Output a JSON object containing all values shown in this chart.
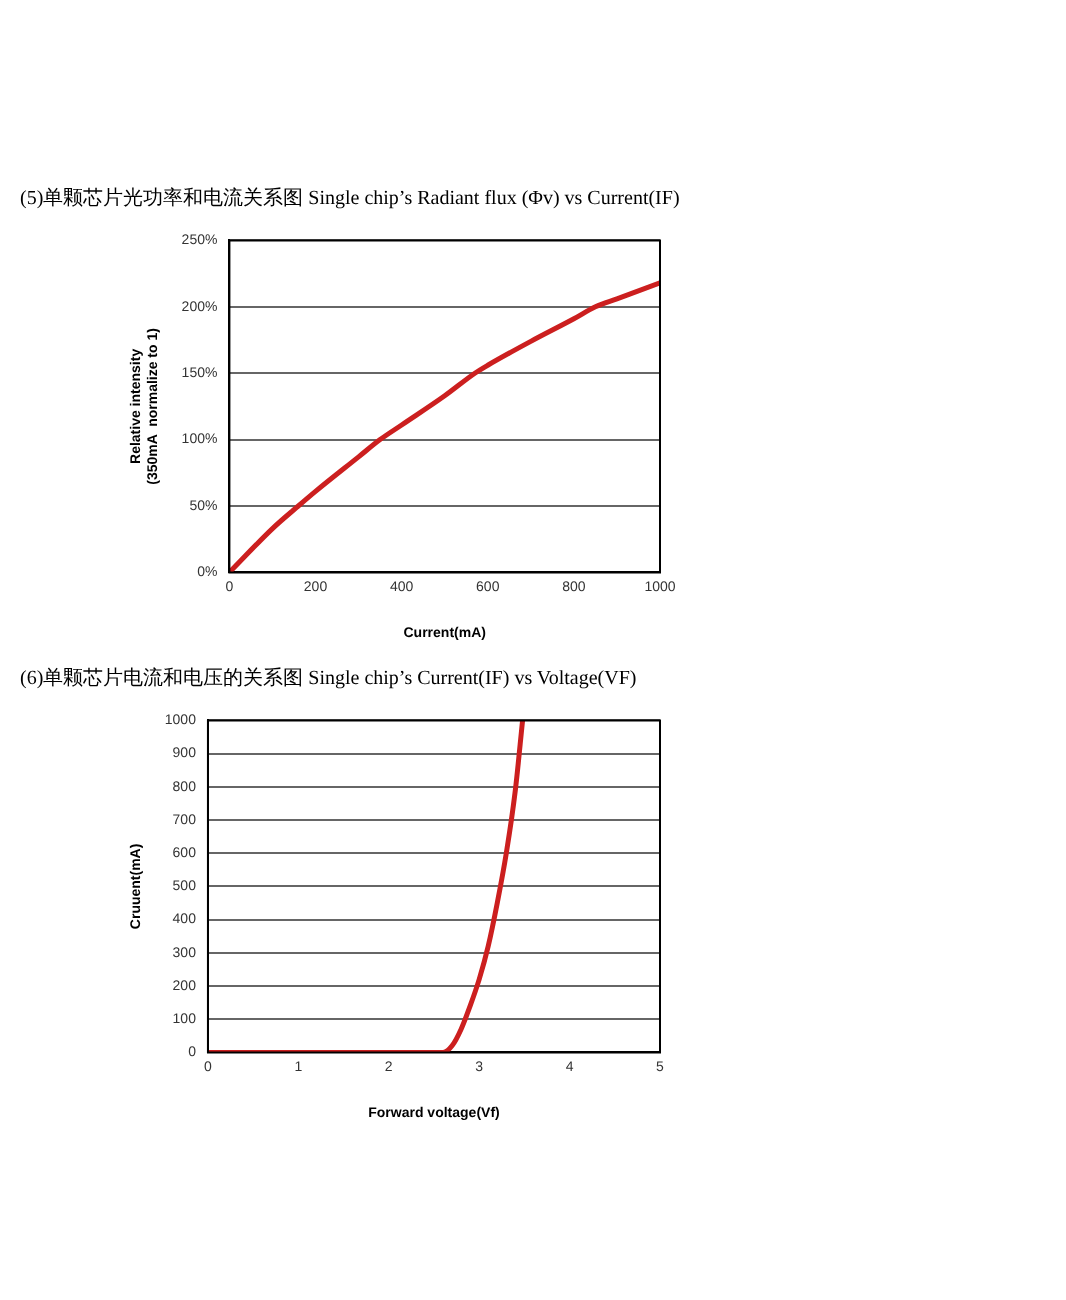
{
  "chart_data": [
    {
      "type": "line",
      "title": "(5)单颗芯片光功率和电流关系图 Single chip’s Radiant flux (Φv) vs Current(IF)",
      "xlabel": "Current(mA)",
      "ylabel": "Relative intensity\n(350mA  normalize to 1)",
      "x": [
        0,
        100,
        160,
        200,
        300,
        350,
        400,
        500,
        570,
        600,
        700,
        800,
        850,
        900,
        1000
      ],
      "series": [
        {
          "color": "#cc1f1f",
          "values": [
            0,
            33,
            50,
            61,
            87,
            100,
            111,
            133,
            150,
            156,
            174,
            191,
            200,
            206,
            218
          ]
        }
      ],
      "xlim": [
        0,
        1000
      ],
      "xticks": [
        0,
        200,
        400,
        600,
        800,
        1000
      ],
      "ylim": [
        0,
        250
      ],
      "yticks": [
        {
          "value": 0,
          "label": "0%"
        },
        {
          "value": 50,
          "label": "50%"
        },
        {
          "value": 100,
          "label": "100%"
        },
        {
          "value": 150,
          "label": "150%"
        },
        {
          "value": 200,
          "label": "200%"
        },
        {
          "value": 250,
          "label": "250%"
        }
      ],
      "grid": "y",
      "legend": false,
      "marker": "none",
      "line_style": "solid"
    },
    {
      "type": "line",
      "title": "(6)单颗芯片电流和电压的关系图  Single chip’s Current(IF) vs Voltage(VF)",
      "xlabel": "Forward voltage(Vf)",
      "ylabel": "Cruuent(mA)",
      "x": [
        0,
        1,
        2,
        2.6,
        2.7,
        2.8,
        2.9,
        3.0,
        3.1,
        3.2,
        3.3,
        3.4,
        3.48
      ],
      "series": [
        {
          "color": "#cc1f1f",
          "values": [
            0,
            0,
            0,
            0,
            20,
            70,
            140,
            220,
            320,
            450,
            600,
            790,
            1000
          ]
        }
      ],
      "xlim": [
        0,
        5
      ],
      "xticks": [
        0,
        1,
        2,
        3,
        4,
        5
      ],
      "ylim": [
        0,
        1000
      ],
      "yticks": [
        0,
        100,
        200,
        300,
        400,
        500,
        600,
        700,
        800,
        900,
        1000
      ],
      "grid": "y",
      "legend": false,
      "marker": "none",
      "line_style": "solid"
    }
  ]
}
